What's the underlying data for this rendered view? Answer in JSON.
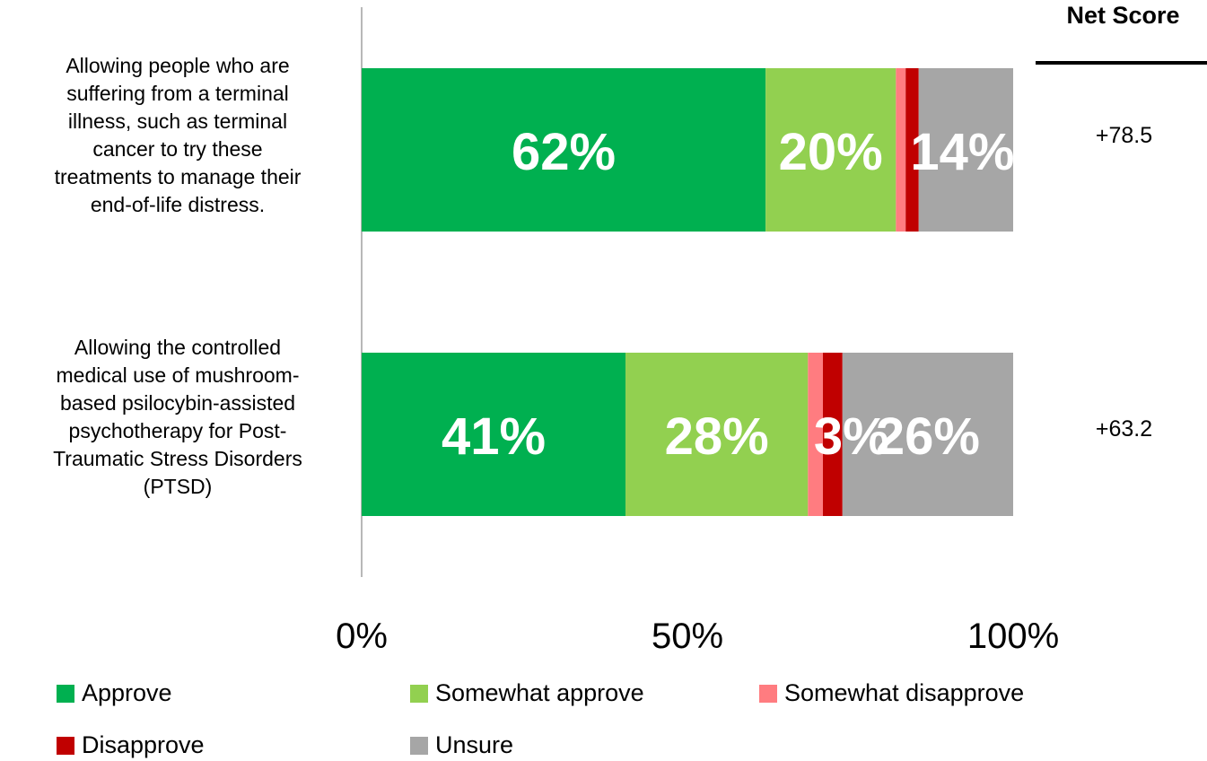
{
  "chart_data": {
    "type": "bar",
    "orientation": "horizontal",
    "stacked": true,
    "categories": [
      "Allowing people who are suffering from a terminal illness, such as terminal cancer to try these treatments to manage their end-of-life distress.",
      "Allowing the controlled medical use of mushroom-based psilocybin-assisted psychotherapy for Post-Traumatic Stress Disorders (PTSD)"
    ],
    "category_lines": [
      [
        "Allowing people who are",
        "suffering from a terminal",
        "illness, such as terminal",
        "cancer to try these",
        "treatments to manage their",
        "end-of-life distress."
      ],
      [
        "Allowing the controlled",
        "medical use of mushroom-",
        "based psilocybin-assisted",
        "psychotherapy for Post-",
        "Traumatic Stress Disorders",
        "(PTSD)"
      ]
    ],
    "series": [
      {
        "name": "Approve",
        "color": "#00b050",
        "values": [
          62,
          40.5
        ],
        "labels": [
          "62%",
          "41%"
        ]
      },
      {
        "name": "Somewhat approve",
        "color": "#92d050",
        "values": [
          20,
          28
        ],
        "labels": [
          "20%",
          "28%"
        ]
      },
      {
        "name": "Somewhat disapprove",
        "color": "#ff7c80",
        "values": [
          1.5,
          2.3
        ],
        "labels": [
          "",
          ""
        ]
      },
      {
        "name": "Disapprove",
        "color": "#c00000",
        "values": [
          2,
          3
        ],
        "labels": [
          "",
          "3%"
        ]
      },
      {
        "name": "Unsure",
        "color": "#a6a6a6",
        "values": [
          14.5,
          26.2
        ],
        "labels": [
          "14%",
          "26%"
        ]
      }
    ],
    "xlim": [
      0,
      100
    ],
    "x_ticks": [
      "0%",
      "50%",
      "100%"
    ],
    "legend_position": "bottom",
    "grid": false
  },
  "net_score": {
    "header": "Net Score",
    "values": [
      "+78.5",
      "+63.2"
    ]
  }
}
